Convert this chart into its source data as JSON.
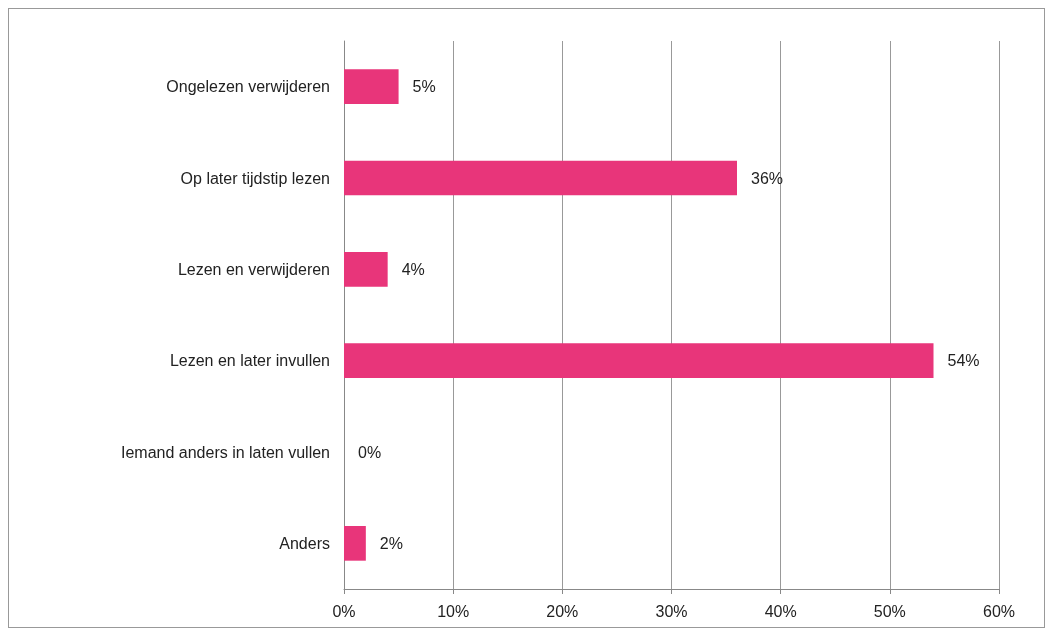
{
  "chart_data": {
    "type": "bar",
    "orientation": "horizontal",
    "categories": [
      "Ongelezen verwijderen",
      "Op later tijdstip lezen",
      "Lezen en verwijderen",
      "Lezen en later invullen",
      "Iemand anders in laten vullen",
      "Anders"
    ],
    "values": [
      5,
      36,
      4,
      54,
      0,
      2
    ],
    "value_labels": [
      "5%",
      "36%",
      "4%",
      "54%",
      "0%",
      "2%"
    ],
    "color": "#e8357a",
    "xlim": [
      0,
      60
    ],
    "xticks": [
      {
        "value": 0,
        "label": "0%"
      },
      {
        "value": 10,
        "label": "10%"
      },
      {
        "value": 20,
        "label": "20%"
      },
      {
        "value": 30,
        "label": "30%"
      },
      {
        "value": 40,
        "label": "40%"
      },
      {
        "value": 50,
        "label": "50%"
      },
      {
        "value": 60,
        "label": "60%"
      }
    ],
    "grid": "x"
  }
}
